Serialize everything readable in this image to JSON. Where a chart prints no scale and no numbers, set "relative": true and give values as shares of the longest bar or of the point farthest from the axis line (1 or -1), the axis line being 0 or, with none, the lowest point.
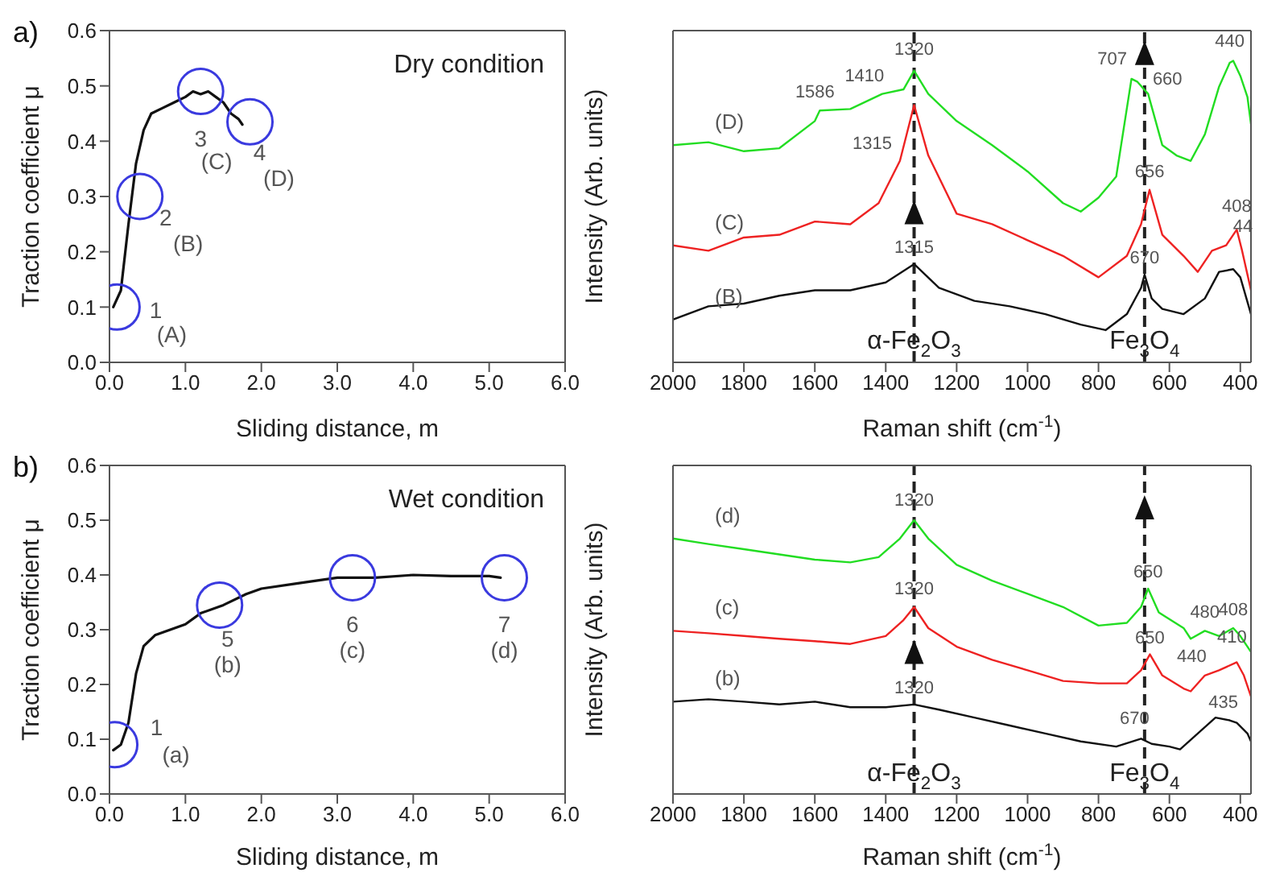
{
  "chart_data": [
    {
      "type": "line",
      "title": "Dry condition",
      "xlabel": "Sliding distance, m",
      "ylabel": "Traction coefficient μ",
      "xlim": [
        0,
        6
      ],
      "xticks": [
        {
          "value": 0,
          "label": "0.0"
        },
        {
          "value": 1,
          "label": "1.0"
        },
        {
          "value": 2,
          "label": "2.0"
        },
        {
          "value": 3,
          "label": "3.0"
        },
        {
          "value": 4,
          "label": "4.0"
        },
        {
          "value": 5,
          "label": "5.0"
        },
        {
          "value": 6,
          "label": "6.0"
        }
      ],
      "ylim": [
        0,
        0.6
      ],
      "yticks": [
        {
          "value": 0,
          "label": "0.0"
        },
        0.1,
        0.2,
        0.3,
        0.4,
        0.5,
        0.6
      ],
      "series": [
        {
          "color": "#111111",
          "marker": "none",
          "x": [
            0.05,
            0.15,
            0.25,
            0.35,
            0.45,
            0.55,
            0.7,
            0.85,
            1.0,
            1.1,
            1.2,
            1.3,
            1.4,
            1.5,
            1.6,
            1.7,
            1.75
          ],
          "values": [
            0.1,
            0.13,
            0.25,
            0.36,
            0.42,
            0.45,
            0.46,
            0.47,
            0.48,
            0.49,
            0.485,
            0.49,
            0.48,
            0.47,
            0.45,
            0.44,
            0.43
          ]
        },
        {
          "type": "scatter",
          "color": "#3a3adf",
          "marker": "circle",
          "x": [
            0.1,
            0.4,
            1.2,
            1.85
          ],
          "values": [
            0.1,
            0.3,
            0.49,
            0.435
          ]
        }
      ],
      "annotations": [
        "a)",
        {
          "text": "1",
          "x": 0.1,
          "y": 0.1
        },
        {
          "text": "(A)",
          "x": 0.1,
          "y": 0.1
        },
        {
          "text": "2",
          "x": 0.4,
          "y": 0.3
        },
        {
          "text": "(B)",
          "x": 0.4,
          "y": 0.3
        },
        {
          "text": "3",
          "x": 1.2,
          "y": 0.49
        },
        {
          "text": "(C)",
          "x": 1.2,
          "y": 0.49
        },
        {
          "text": "4",
          "x": 1.85,
          "y": 0.435
        },
        {
          "text": "(D)",
          "x": 1.85,
          "y": 0.435
        }
      ]
    },
    {
      "type": "line",
      "relative": true,
      "xlabel": "Raman shift (cm$^{-1}$)",
      "ylabel": "Intensity (Arb. units)",
      "xlim": [
        2000,
        370
      ],
      "xticks": [
        2000,
        1800,
        1600,
        1400,
        1200,
        1000,
        800,
        600,
        400
      ],
      "series": [
        {
          "name": "(D)",
          "color": "#22dd22",
          "x": [
            2000,
            1900,
            1800,
            1700,
            1600,
            1586,
            1500,
            1410,
            1350,
            1320,
            1280,
            1200,
            1100,
            1000,
            900,
            850,
            800,
            750,
            707,
            690,
            660,
            620,
            580,
            540,
            500,
            460,
            430,
            420,
            400,
            380,
            370
          ],
          "values": [
            0.72,
            0.73,
            0.7,
            0.71,
            0.8,
            0.835,
            0.84,
            0.89,
            0.905,
            0.967,
            0.89,
            0.8,
            0.72,
            0.633,
            0.528,
            0.5,
            0.546,
            0.616,
            0.94,
            0.93,
            0.89,
            0.72,
            0.686,
            0.668,
            0.756,
            0.914,
            0.993,
            1.0,
            0.95,
            0.88,
            0.79
          ]
        },
        {
          "name": "(C)",
          "color": "#ee2222",
          "x": [
            2000,
            1900,
            1800,
            1700,
            1600,
            1500,
            1420,
            1360,
            1320,
            1280,
            1200,
            1100,
            1000,
            900,
            800,
            720,
            680,
            656,
            620,
            560,
            520,
            480,
            440,
            410,
            395,
            370
          ],
          "values": [
            0.388,
            0.37,
            0.414,
            0.423,
            0.467,
            0.458,
            0.528,
            0.668,
            0.853,
            0.686,
            0.493,
            0.458,
            0.405,
            0.353,
            0.282,
            0.353,
            0.458,
            0.572,
            0.423,
            0.353,
            0.3,
            0.37,
            0.388,
            0.44,
            0.37,
            0.239
          ]
        },
        {
          "name": "(B)",
          "color": "#111111",
          "x": [
            2000,
            1900,
            1800,
            1700,
            1600,
            1500,
            1400,
            1320,
            1250,
            1150,
            1050,
            950,
            850,
            780,
            720,
            680,
            670,
            650,
            620,
            560,
            500,
            460,
            420,
            400,
            370
          ],
          "values": [
            0.142,
            0.186,
            0.195,
            0.221,
            0.239,
            0.239,
            0.265,
            0.326,
            0.247,
            0.204,
            0.186,
            0.16,
            0.125,
            0.107,
            0.16,
            0.247,
            0.291,
            0.212,
            0.177,
            0.16,
            0.212,
            0.3,
            0.309,
            0.282,
            0.16
          ]
        }
      ],
      "ref_lines": [
        {
          "axis": "x",
          "value": 1320,
          "label": "α-Fe$_{2}$O$_{3}$",
          "color": "#222222",
          "line_style": "dashed"
        },
        {
          "axis": "x",
          "value": 670,
          "label": "Fe$_{3}$O$_{4}$",
          "color": "#222222",
          "line_style": "dashed"
        }
      ],
      "annotations": [
        {
          "text": "1586",
          "x": 1586,
          "y": 0.835
        },
        {
          "text": "1410",
          "x": 1410,
          "y": 0.89
        },
        {
          "text": "1320",
          "x": 1320,
          "y": 0.967
        },
        {
          "text": "1315",
          "x": 1320,
          "y": 0.853
        },
        {
          "text": "707",
          "x": 707,
          "y": 0.94
        },
        {
          "text": "660",
          "x": 660,
          "y": 0.89
        },
        {
          "text": "440",
          "x": 430,
          "y": 0.993
        },
        {
          "text": "656",
          "x": 656,
          "y": 0.572
        },
        {
          "text": "408",
          "x": 410,
          "y": 0.44
        },
        {
          "text": "44",
          "x": 420,
          "y": 0.309
        },
        {
          "text": "1315",
          "x": 1320,
          "y": 0.326
        },
        {
          "text": "670",
          "x": 670,
          "y": 0.291
        }
      ]
    },
    {
      "type": "line",
      "title": "Wet condition",
      "xlabel": "Sliding distance, m",
      "ylabel": "Traction coefficient μ",
      "xlim": [
        0,
        6
      ],
      "xticks": [
        {
          "value": 0,
          "label": "0.0"
        },
        {
          "value": 1,
          "label": "1.0"
        },
        {
          "value": 2,
          "label": "2.0"
        },
        {
          "value": 3,
          "label": "3.0"
        },
        {
          "value": 4,
          "label": "4.0"
        },
        {
          "value": 5,
          "label": "5.0"
        },
        {
          "value": 6,
          "label": "6.0"
        }
      ],
      "ylim": [
        0,
        0.6
      ],
      "yticks": [
        {
          "value": 0,
          "label": "0.0"
        },
        0.1,
        0.2,
        0.3,
        0.4,
        0.5,
        0.6
      ],
      "series": [
        {
          "color": "#111111",
          "marker": "none",
          "x": [
            0.05,
            0.15,
            0.25,
            0.35,
            0.45,
            0.6,
            0.8,
            1.0,
            1.2,
            1.5,
            1.8,
            2.0,
            2.5,
            3.0,
            3.5,
            4.0,
            4.5,
            5.0,
            5.15
          ],
          "values": [
            0.08,
            0.09,
            0.13,
            0.22,
            0.27,
            0.29,
            0.3,
            0.31,
            0.33,
            0.345,
            0.365,
            0.375,
            0.385,
            0.395,
            0.395,
            0.4,
            0.398,
            0.398,
            0.395
          ]
        },
        {
          "type": "scatter",
          "color": "#3a3adf",
          "marker": "circle",
          "x": [
            0.07,
            1.45,
            3.2,
            5.2
          ],
          "values": [
            0.09,
            0.345,
            0.395,
            0.395
          ]
        }
      ],
      "annotations": [
        "b)",
        {
          "text": "1",
          "x": 0.07,
          "y": 0.09
        },
        {
          "text": "(a)",
          "x": 0.07,
          "y": 0.09
        },
        {
          "text": "5",
          "x": 1.45,
          "y": 0.345
        },
        {
          "text": "(b)",
          "x": 1.45,
          "y": 0.345
        },
        {
          "text": "6",
          "x": 3.2,
          "y": 0.395
        },
        {
          "text": "(c)",
          "x": 3.2,
          "y": 0.395
        },
        {
          "text": "7",
          "x": 5.2,
          "y": 0.395
        },
        {
          "text": "(d)",
          "x": 5.2,
          "y": 0.395
        }
      ]
    },
    {
      "type": "line",
      "relative": true,
      "xlabel": "Raman shift (cm$^{-1}$)",
      "ylabel": "Intensity (Arb. units)",
      "xlim": [
        2000,
        370
      ],
      "xticks": [
        2000,
        1800,
        1600,
        1400,
        1200,
        1000,
        800,
        600,
        400
      ],
      "series": [
        {
          "name": "(d)",
          "color": "#22dd22",
          "x": [
            2000,
            1900,
            1800,
            1700,
            1600,
            1500,
            1420,
            1360,
            1320,
            1280,
            1200,
            1100,
            1000,
            900,
            800,
            720,
            680,
            660,
            630,
            560,
            540,
            500,
            460,
            420,
            400,
            370
          ],
          "values": [
            0.933,
            0.913,
            0.894,
            0.875,
            0.856,
            0.846,
            0.865,
            0.933,
            1.0,
            0.933,
            0.837,
            0.779,
            0.731,
            0.683,
            0.615,
            0.625,
            0.683,
            0.75,
            0.663,
            0.606,
            0.567,
            0.596,
            0.577,
            0.606,
            0.577,
            0.519
          ]
        },
        {
          "name": "(c)",
          "color": "#ee2222",
          "x": [
            2000,
            1900,
            1800,
            1700,
            1600,
            1500,
            1400,
            1350,
            1320,
            1280,
            1200,
            1100,
            1000,
            900,
            800,
            720,
            680,
            655,
            620,
            560,
            540,
            500,
            460,
            410,
            390,
            370
          ],
          "values": [
            0.596,
            0.587,
            0.577,
            0.567,
            0.558,
            0.548,
            0.577,
            0.635,
            0.683,
            0.606,
            0.538,
            0.49,
            0.452,
            0.413,
            0.404,
            0.404,
            0.452,
            0.51,
            0.433,
            0.385,
            0.375,
            0.433,
            0.452,
            0.481,
            0.433,
            0.356
          ]
        },
        {
          "name": "(b)",
          "color": "#111111",
          "x": [
            2000,
            1900,
            1800,
            1700,
            1600,
            1500,
            1400,
            1320,
            1250,
            1150,
            1050,
            950,
            850,
            750,
            680,
            650,
            600,
            570,
            520,
            470,
            430,
            410,
            380,
            370
          ],
          "values": [
            0.337,
            0.346,
            0.337,
            0.327,
            0.337,
            0.317,
            0.317,
            0.327,
            0.308,
            0.279,
            0.25,
            0.221,
            0.192,
            0.173,
            0.202,
            0.183,
            0.173,
            0.163,
            0.221,
            0.279,
            0.269,
            0.26,
            0.221,
            0.192
          ]
        }
      ],
      "ref_lines": [
        {
          "axis": "x",
          "value": 1320,
          "label": "α-Fe$_{2}$O$_{3}$",
          "color": "#222222",
          "line_style": "dashed"
        },
        {
          "axis": "x",
          "value": 670,
          "label": "Fe$_{3}$O$_{4}$",
          "color": "#222222",
          "line_style": "dashed"
        }
      ],
      "annotations": [
        {
          "text": "1320",
          "x": 1320,
          "y": 1.0
        },
        {
          "text": "1320",
          "x": 1320,
          "y": 0.683
        },
        {
          "text": "1320",
          "x": 1320,
          "y": 0.327
        },
        {
          "text": "650",
          "x": 660,
          "y": 0.75
        },
        {
          "text": "650",
          "x": 655,
          "y": 0.51
        },
        {
          "text": "670",
          "x": 680,
          "y": 0.202
        },
        {
          "text": "480",
          "x": 500,
          "y": 0.596
        },
        {
          "text": "408",
          "x": 420,
          "y": 0.606
        },
        {
          "text": "440",
          "x": 460,
          "y": 0.452
        },
        {
          "text": "410",
          "x": 410,
          "y": 0.481
        },
        {
          "text": "435",
          "x": 430,
          "y": 0.269
        }
      ]
    }
  ]
}
